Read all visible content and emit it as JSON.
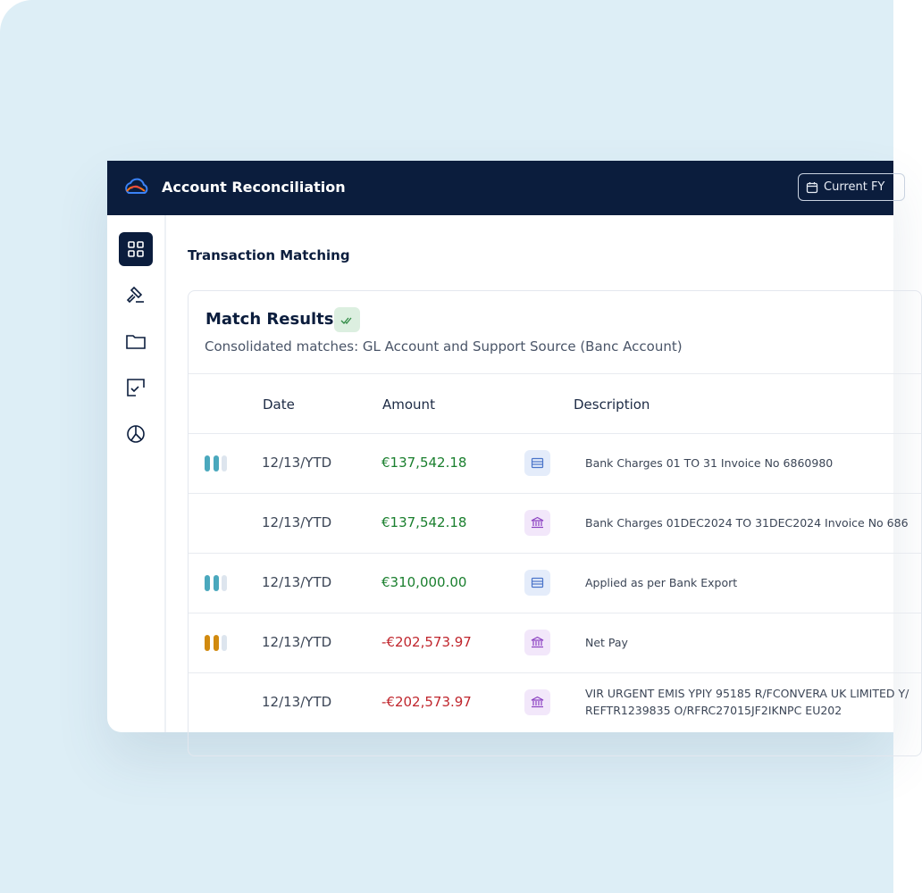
{
  "header": {
    "title": "Account Reconciliation",
    "period_button": "Current FY"
  },
  "page": {
    "title": "Transaction Matching"
  },
  "card": {
    "title": "Match Results",
    "subtitle": "Consolidated matches: GL Account and Support Source (Banc Account)"
  },
  "table": {
    "columns": [
      "Date",
      "Amount",
      "Description"
    ],
    "rows": [
      {
        "indicator": "#4aa8bd",
        "date": "12/13/YTD",
        "amount": "€137,542.18",
        "tone": "positive",
        "source": "ledger",
        "description": [
          "Bank Charges 01 TO 31 Invoice No 6860980"
        ]
      },
      {
        "indicator": null,
        "date": "12/13/YTD",
        "amount": "€137,542.18",
        "tone": "positive",
        "source": "bank",
        "description": [
          "Bank Charges 01DEC2024 TO 31DEC2024 Invoice No 686"
        ]
      },
      {
        "indicator": "#4aa8bd",
        "date": "12/13/YTD",
        "amount": "€310,000.00",
        "tone": "positive",
        "source": "ledger",
        "description": [
          "Applied as per Bank Export"
        ]
      },
      {
        "indicator": "#d18a0f",
        "date": "12/13/YTD",
        "amount": "-€202,573.97",
        "tone": "negative",
        "source": "bank",
        "description": [
          "Net Pay"
        ]
      },
      {
        "indicator": null,
        "date": "12/13/YTD",
        "amount": "-€202,573.97",
        "tone": "negative",
        "source": "bank",
        "description": [
          "VIR URGENT EMIS YPIY 95185 R/FCONVERA UK LIMITED Y/",
          "REFTR1239835 O/RFRC27015JF2IKNPC EU202"
        ]
      }
    ]
  }
}
